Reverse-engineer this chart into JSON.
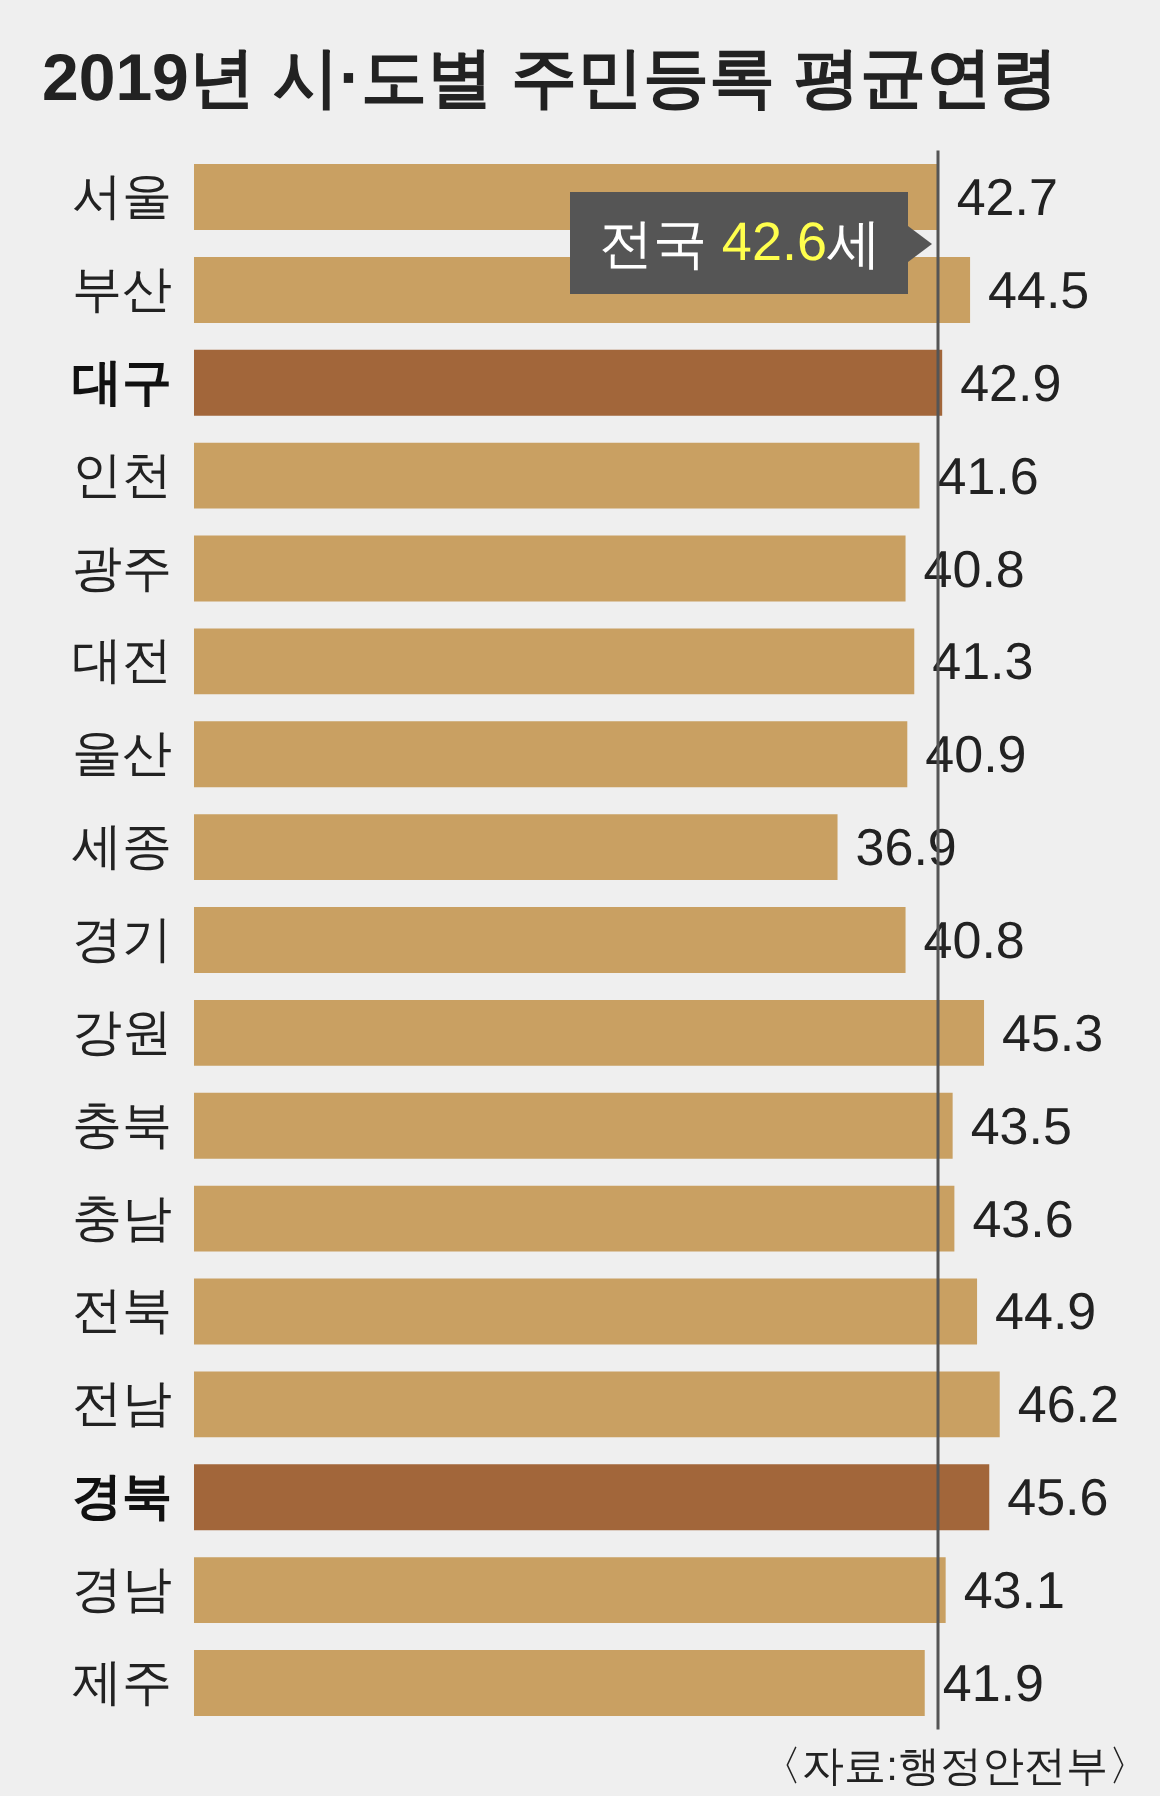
{
  "chart_data": {
    "type": "bar",
    "orientation": "horizontal",
    "title": "2019년 시·도별 주민등록 평균연령",
    "categories": [
      "서울",
      "부산",
      "대구",
      "인천",
      "광주",
      "대전",
      "울산",
      "세종",
      "경기",
      "강원",
      "충북",
      "충남",
      "전북",
      "전남",
      "경북",
      "경남",
      "제주"
    ],
    "values": [
      42.7,
      44.5,
      42.9,
      41.6,
      40.8,
      41.3,
      40.9,
      36.9,
      40.8,
      45.3,
      43.5,
      43.6,
      44.9,
      46.2,
      45.6,
      43.1,
      41.9
    ],
    "colors": [
      "#c9a062",
      "#c9a062",
      "#a2663a",
      "#c9a062",
      "#c9a062",
      "#c9a062",
      "#c9a062",
      "#c9a062",
      "#c9a062",
      "#c9a062",
      "#c9a062",
      "#c9a062",
      "#c9a062",
      "#c9a062",
      "#a2663a",
      "#c9a062",
      "#c9a062"
    ],
    "data_labels": true,
    "ref_lines": [
      {
        "axis": "x",
        "value": 42.6,
        "label": "전국 42.6세",
        "color": "#555555"
      }
    ],
    "annotations": [
      "〈자료:행정안전부〉"
    ],
    "tick_labels": "y"
  }
}
